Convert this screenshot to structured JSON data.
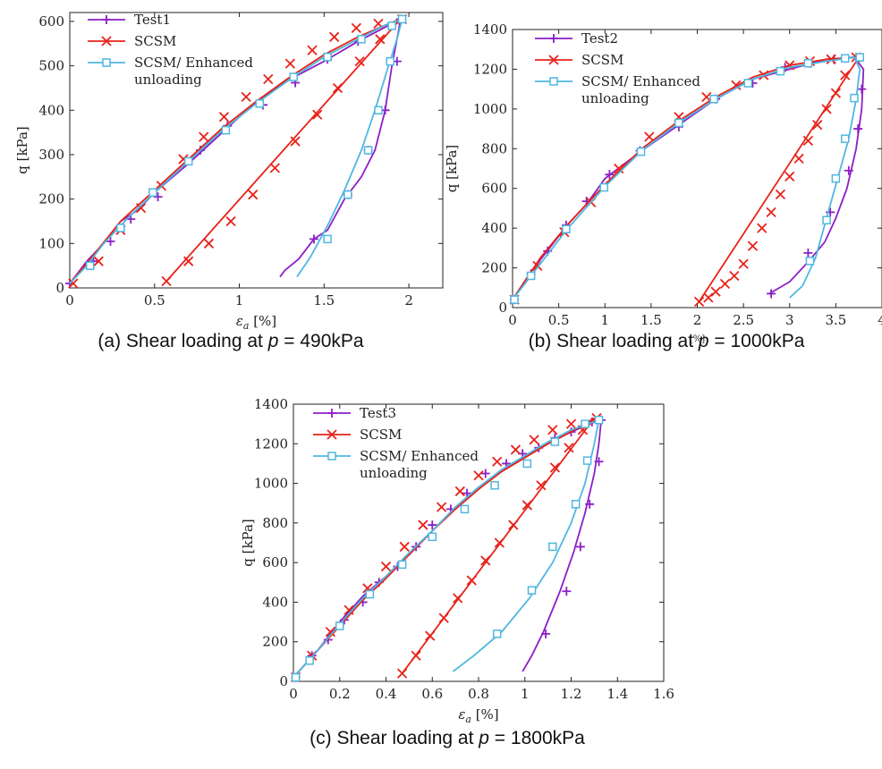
{
  "chart_data": [
    {
      "type": "line",
      "caption_prefix": "(a) Shear loading at ",
      "caption_var": "p",
      "caption_suffix": " = 490kPa",
      "xlabel_main": "ε",
      "xlabel_sub": "a",
      "xlabel_unit": " [%]",
      "ylabel": "q [kPa]",
      "xlim": [
        0,
        2.2
      ],
      "ylim": [
        0,
        620
      ],
      "xticks": [
        0,
        0.5,
        1,
        1.5,
        2
      ],
      "xtick_labels": [
        "0",
        "0.5",
        "1",
        "1.5",
        "2"
      ],
      "yticks": [
        0,
        100,
        200,
        300,
        400,
        500,
        600
      ],
      "ytick_labels": [
        "0",
        "100",
        "200",
        "300",
        "400",
        "500",
        "600"
      ],
      "legend_position": "top-left",
      "series": [
        {
          "name": "Test1",
          "color": "#8b1fc7",
          "marker": "plus",
          "x": [
            0,
            0.1,
            0.2,
            0.3,
            0.4,
            0.5,
            0.7,
            0.9,
            1.1,
            1.3,
            1.5,
            1.7,
            1.85,
            1.95,
            1.94,
            1.9,
            1.86,
            1.8,
            1.72,
            1.62,
            1.52,
            1.44,
            1.35,
            1.27,
            1.24
          ],
          "y": [
            10,
            60,
            100,
            150,
            175,
            215,
            280,
            350,
            420,
            470,
            510,
            555,
            585,
            605,
            580,
            500,
            400,
            310,
            250,
            200,
            130,
            110,
            65,
            40,
            25
          ],
          "marker_x": [
            0,
            0.14,
            0.24,
            0.36,
            0.52,
            0.77,
            0.93,
            1.14,
            1.33,
            1.52,
            1.7,
            1.95,
            1.93,
            1.86,
            1.76,
            1.64,
            1.44
          ],
          "marker_y": [
            10,
            60,
            105,
            155,
            205,
            310,
            365,
            412,
            462,
            515,
            555,
            605,
            510,
            400,
            310,
            210,
            110
          ]
        },
        {
          "name": "SCSM",
          "color": "#e8221a",
          "marker": "x",
          "x": [
            0,
            0.1,
            0.3,
            0.5,
            0.7,
            0.9,
            1.1,
            1.3,
            1.5,
            1.7,
            1.85,
            1.95,
            0.57
          ],
          "y": [
            10,
            55,
            150,
            220,
            290,
            360,
            420,
            475,
            525,
            565,
            590,
            605,
            15
          ],
          "segments": [
            [
              0,
              11
            ],
            [
              11,
              12
            ]
          ],
          "marker_x": [
            0.02,
            0.17,
            0.3,
            0.42,
            0.54,
            0.67,
            0.79,
            0.91,
            1.04,
            1.17,
            1.3,
            1.43,
            1.56,
            1.69,
            1.82,
            1.96,
            1.83,
            1.71,
            1.58,
            1.46,
            1.33,
            1.21,
            1.08,
            0.95,
            0.82,
            0.7,
            0.57
          ],
          "marker_y": [
            10,
            60,
            130,
            180,
            230,
            290,
            340,
            385,
            430,
            470,
            505,
            535,
            565,
            585,
            595,
            605,
            560,
            510,
            450,
            390,
            330,
            270,
            210,
            150,
            100,
            60,
            15
          ]
        },
        {
          "name": "SCSM/ Enhanced unloading",
          "color": "#4fb7e0",
          "marker": "square",
          "x": [
            0,
            0.1,
            0.2,
            0.35,
            0.5,
            0.7,
            0.9,
            1.1,
            1.3,
            1.5,
            1.7,
            1.85,
            1.96,
            1.93,
            1.88,
            1.8,
            1.72,
            1.62,
            1.52,
            1.42,
            1.34
          ],
          "y": [
            10,
            50,
            100,
            160,
            215,
            285,
            355,
            415,
            470,
            520,
            560,
            590,
            605,
            560,
            500,
            400,
            310,
            220,
            140,
            70,
            25
          ],
          "marker_x": [
            0.12,
            0.3,
            0.49,
            0.7,
            0.92,
            1.12,
            1.32,
            1.52,
            1.72,
            1.9,
            1.96,
            1.89,
            1.82,
            1.76,
            1.64,
            1.52
          ],
          "marker_y": [
            50,
            135,
            215,
            285,
            355,
            415,
            475,
            520,
            560,
            590,
            605,
            510,
            400,
            310,
            210,
            110
          ]
        }
      ]
    },
    {
      "type": "line",
      "caption_prefix": "(b) Shear loading at ",
      "caption_var": "p",
      "caption_suffix": " = 1000kPa",
      "xlabel_main": "",
      "xlabel_sub": "",
      "xlabel_unit": "[%]",
      "ylabel": "q [kPa]",
      "xlim": [
        0,
        4
      ],
      "ylim": [
        0,
        1400
      ],
      "xticks": [
        0,
        0.5,
        1,
        1.5,
        2,
        2.5,
        3,
        3.5,
        4
      ],
      "xtick_labels": [
        "0",
        "0.5",
        "1",
        "1.5",
        "2",
        "2.5",
        "3",
        "3.5",
        "4"
      ],
      "yticks": [
        0,
        200,
        400,
        600,
        800,
        1000,
        1200,
        1400
      ],
      "ytick_labels": [
        "0",
        "200",
        "400",
        "600",
        "800",
        "1000",
        "1200",
        "1400"
      ],
      "legend_position": "top-left",
      "series": [
        {
          "name": "Test2",
          "color": "#8b1fc7",
          "marker": "plus",
          "x": [
            0,
            0.2,
            0.4,
            0.6,
            0.8,
            1.0,
            1.4,
            1.8,
            2.2,
            2.6,
            3.0,
            3.4,
            3.7,
            3.8,
            3.78,
            3.72,
            3.62,
            3.5,
            3.38,
            3.2,
            3.0,
            2.78
          ],
          "y": [
            40,
            180,
            300,
            420,
            520,
            650,
            790,
            920,
            1050,
            1150,
            1200,
            1250,
            1260,
            1200,
            1000,
            800,
            600,
            450,
            330,
            230,
            130,
            70
          ],
          "marker_x": [
            0.02,
            0.2,
            0.38,
            0.58,
            0.8,
            1.05,
            1.38,
            1.8,
            2.2,
            2.6,
            2.95,
            3.22,
            3.48,
            3.72,
            3.78,
            3.74,
            3.64,
            3.44,
            3.2,
            2.8
          ],
          "marker_y": [
            40,
            170,
            285,
            415,
            535,
            670,
            790,
            910,
            1050,
            1130,
            1210,
            1230,
            1250,
            1260,
            1100,
            900,
            690,
            480,
            275,
            70
          ]
        },
        {
          "name": "SCSM",
          "color": "#e8221a",
          "marker": "x",
          "x": [
            0,
            0.3,
            0.6,
            1.0,
            1.4,
            1.8,
            2.2,
            2.6,
            3.0,
            3.4,
            3.75,
            2.02
          ],
          "y": [
            40,
            250,
            420,
            620,
            800,
            940,
            1060,
            1160,
            1220,
            1250,
            1260,
            30
          ],
          "segments": [
            [
              0,
              10
            ],
            [
              10,
              11
            ]
          ],
          "marker_x": [
            0.02,
            0.27,
            0.56,
            0.85,
            1.15,
            1.48,
            1.8,
            2.1,
            2.42,
            2.72,
            3.0,
            3.22,
            3.45,
            3.72,
            3.6,
            3.5,
            3.4,
            3.3,
            3.2,
            3.1,
            3.0,
            2.9,
            2.8,
            2.7,
            2.6,
            2.5,
            2.4,
            2.3,
            2.2,
            2.12,
            2.02
          ],
          "marker_y": [
            40,
            210,
            380,
            530,
            700,
            860,
            960,
            1060,
            1120,
            1170,
            1220,
            1240,
            1250,
            1260,
            1170,
            1080,
            1000,
            920,
            840,
            750,
            660,
            570,
            480,
            400,
            310,
            220,
            160,
            120,
            80,
            50,
            30
          ]
        },
        {
          "name": "SCSM/ Enhanced unloading",
          "color": "#4fb7e0",
          "marker": "square",
          "x": [
            0,
            0.2,
            0.6,
            1.0,
            1.4,
            1.8,
            2.2,
            2.6,
            3.0,
            3.4,
            3.7,
            3.76,
            3.72,
            3.64,
            3.52,
            3.4,
            3.28,
            3.14,
            3.0
          ],
          "y": [
            40,
            160,
            400,
            610,
            790,
            930,
            1050,
            1150,
            1210,
            1240,
            1260,
            1200,
            1050,
            850,
            650,
            450,
            250,
            110,
            50
          ],
          "marker_x": [
            0.02,
            0.2,
            0.58,
            0.99,
            1.39,
            1.8,
            2.18,
            2.55,
            2.9,
            3.2,
            3.6,
            3.76,
            3.7,
            3.6,
            3.5,
            3.4,
            3.22
          ],
          "marker_y": [
            40,
            160,
            395,
            605,
            785,
            930,
            1050,
            1130,
            1190,
            1230,
            1255,
            1260,
            1055,
            850,
            650,
            440,
            235
          ]
        }
      ]
    },
    {
      "type": "line",
      "caption_prefix": "(c) Shear loading at ",
      "caption_var": "p",
      "caption_suffix": " = 1800kPa",
      "xlabel_main": "ε",
      "xlabel_sub": "a",
      "xlabel_unit": " [%]",
      "ylabel": "q [kPa]",
      "xlim": [
        0,
        1.6
      ],
      "ylim": [
        0,
        1400
      ],
      "xticks": [
        0,
        0.2,
        0.4,
        0.6,
        0.8,
        1,
        1.2,
        1.4,
        1.6
      ],
      "xtick_labels": [
        "0",
        "0.2",
        "0.4",
        "0.6",
        "0.8",
        "1",
        "1.2",
        "1.4",
        "1.6"
      ],
      "yticks": [
        0,
        200,
        400,
        600,
        800,
        1000,
        1200,
        1400
      ],
      "ytick_labels": [
        "0",
        "200",
        "400",
        "600",
        "800",
        "1000",
        "1200",
        "1400"
      ],
      "legend_position": "top-left",
      "series": [
        {
          "name": "Test3",
          "color": "#8b1fc7",
          "marker": "plus",
          "x": [
            0,
            0.1,
            0.2,
            0.3,
            0.4,
            0.5,
            0.6,
            0.7,
            0.8,
            0.9,
            1.0,
            1.1,
            1.2,
            1.3,
            1.33,
            1.32,
            1.3,
            1.26,
            1.21,
            1.15,
            1.08,
            1.03,
            0.99
          ],
          "y": [
            20,
            150,
            300,
            430,
            530,
            640,
            760,
            880,
            980,
            1060,
            1140,
            1200,
            1260,
            1310,
            1320,
            1200,
            1050,
            850,
            650,
            450,
            250,
            130,
            50
          ],
          "marker_x": [
            0.01,
            0.08,
            0.15,
            0.22,
            0.3,
            0.37,
            0.45,
            0.53,
            0.6,
            0.68,
            0.75,
            0.83,
            0.92,
            0.99,
            1.06,
            1.13,
            1.2,
            1.29,
            1.33,
            1.32,
            1.28,
            1.24,
            1.18,
            1.09
          ],
          "marker_y": [
            20,
            130,
            210,
            310,
            400,
            500,
            580,
            680,
            790,
            870,
            950,
            1050,
            1100,
            1150,
            1180,
            1230,
            1260,
            1310,
            1320,
            1110,
            895,
            680,
            455,
            240
          ]
        },
        {
          "name": "SCSM",
          "color": "#e8221a",
          "marker": "x",
          "x": [
            0,
            0.1,
            0.2,
            0.3,
            0.4,
            0.5,
            0.6,
            0.7,
            0.8,
            0.9,
            1.0,
            1.1,
            1.2,
            1.3,
            0.47
          ],
          "y": [
            20,
            150,
            280,
            410,
            520,
            640,
            760,
            870,
            970,
            1060,
            1130,
            1200,
            1260,
            1330,
            40
          ],
          "segments": [
            [
              0,
              13
            ],
            [
              13,
              14
            ]
          ],
          "marker_x": [
            0.01,
            0.08,
            0.16,
            0.24,
            0.32,
            0.4,
            0.48,
            0.56,
            0.64,
            0.72,
            0.8,
            0.88,
            0.96,
            1.04,
            1.12,
            1.2,
            1.31,
            1.25,
            1.19,
            1.13,
            1.07,
            1.01,
            0.95,
            0.89,
            0.83,
            0.77,
            0.71,
            0.65,
            0.59,
            0.53,
            0.47
          ],
          "marker_y": [
            20,
            130,
            250,
            360,
            470,
            580,
            680,
            790,
            880,
            960,
            1040,
            1110,
            1170,
            1220,
            1270,
            1300,
            1330,
            1270,
            1180,
            1080,
            990,
            890,
            790,
            700,
            610,
            510,
            420,
            320,
            230,
            130,
            40
          ]
        },
        {
          "name": "SCSM/ Enhanced unloading",
          "color": "#4fb7e0",
          "marker": "square",
          "x": [
            0,
            0.1,
            0.2,
            0.3,
            0.4,
            0.5,
            0.6,
            0.7,
            0.8,
            0.9,
            1.0,
            1.1,
            1.2,
            1.32,
            1.3,
            1.26,
            1.2,
            1.12,
            1.02,
            0.9,
            0.78,
            0.69
          ],
          "y": [
            20,
            150,
            290,
            420,
            530,
            650,
            760,
            880,
            980,
            1070,
            1140,
            1210,
            1270,
            1320,
            1200,
            1000,
            800,
            600,
            420,
            250,
            130,
            50
          ],
          "marker_x": [
            0.01,
            0.07,
            0.2,
            0.33,
            0.47,
            0.6,
            0.74,
            0.87,
            1.01,
            1.13,
            1.26,
            1.32,
            1.27,
            1.22,
            1.12,
            1.03,
            0.88
          ],
          "marker_y": [
            20,
            105,
            280,
            440,
            590,
            730,
            870,
            990,
            1100,
            1210,
            1300,
            1320,
            1115,
            895,
            680,
            460,
            240
          ]
        }
      ]
    }
  ]
}
